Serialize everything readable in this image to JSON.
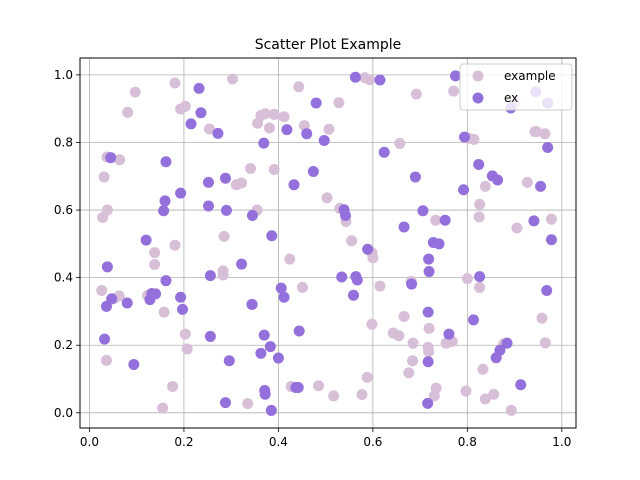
{
  "chart_data": {
    "type": "scatter",
    "title": "Scatter Plot Example",
    "xlabel": "",
    "ylabel": "",
    "xlim": [
      -0.02,
      1.03
    ],
    "ylim": [
      -0.045,
      1.05
    ],
    "xticks": [
      0.0,
      0.2,
      0.4,
      0.6,
      0.8,
      1.0
    ],
    "xtick_labels": [
      "0.0",
      "0.2",
      "0.4",
      "0.6",
      "0.8",
      "1.0"
    ],
    "yticks": [
      0.0,
      0.2,
      0.4,
      0.6,
      0.8,
      1.0
    ],
    "ytick_labels": [
      "0.0",
      "0.2",
      "0.4",
      "0.6",
      "0.8",
      "1.0"
    ],
    "grid": true,
    "legend": "top-right",
    "series": [
      {
        "name": "example",
        "color": "#d8bfd8",
        "points": [
          [
            0.097,
            0.949
          ],
          [
            0.181,
            0.976
          ],
          [
            0.303,
            0.988
          ],
          [
            0.443,
            0.965
          ],
          [
            0.583,
            0.992
          ],
          [
            0.593,
            0.986
          ],
          [
            0.692,
            0.943
          ],
          [
            0.771,
            0.952
          ],
          [
            0.081,
            0.889
          ],
          [
            0.203,
            0.907
          ],
          [
            0.193,
            0.899
          ],
          [
            0.254,
            0.84
          ],
          [
            0.363,
            0.88
          ],
          [
            0.372,
            0.885
          ],
          [
            0.391,
            0.883
          ],
          [
            0.412,
            0.876
          ],
          [
            0.356,
            0.857
          ],
          [
            0.381,
            0.843
          ],
          [
            0.455,
            0.85
          ],
          [
            0.507,
            0.839
          ],
          [
            0.528,
            0.918
          ],
          [
            0.657,
            0.797
          ],
          [
            0.814,
            0.809
          ],
          [
            0.943,
            0.832
          ],
          [
            0.964,
            0.826
          ],
          [
            0.037,
            0.757
          ],
          [
            0.064,
            0.749
          ],
          [
            0.391,
            0.72
          ],
          [
            0.322,
            0.68
          ],
          [
            0.311,
            0.675
          ],
          [
            0.341,
            0.723
          ],
          [
            0.503,
            0.636
          ],
          [
            0.838,
            0.67
          ],
          [
            0.927,
            0.682
          ],
          [
            0.031,
            0.698
          ],
          [
            0.038,
            0.6
          ],
          [
            0.028,
            0.578
          ],
          [
            0.355,
            0.6
          ],
          [
            0.53,
            0.605
          ],
          [
            0.543,
            0.566
          ],
          [
            0.555,
            0.509
          ],
          [
            0.598,
            0.474
          ],
          [
            0.6,
            0.459
          ],
          [
            0.733,
            0.57
          ],
          [
            0.825,
            0.58
          ],
          [
            0.826,
            0.617
          ],
          [
            0.905,
            0.547
          ],
          [
            0.978,
            0.573
          ],
          [
            0.181,
            0.496
          ],
          [
            0.138,
            0.474
          ],
          [
            0.138,
            0.439
          ],
          [
            0.285,
            0.522
          ],
          [
            0.424,
            0.455
          ],
          [
            0.615,
            0.375
          ],
          [
            0.681,
            0.389
          ],
          [
            0.8,
            0.397
          ],
          [
            0.826,
            0.371
          ],
          [
            0.026,
            0.362
          ],
          [
            0.052,
            0.338
          ],
          [
            0.063,
            0.346
          ],
          [
            0.123,
            0.347
          ],
          [
            0.158,
            0.298
          ],
          [
            0.283,
            0.408
          ],
          [
            0.283,
            0.42
          ],
          [
            0.345,
            0.32
          ],
          [
            0.451,
            0.371
          ],
          [
            0.598,
            0.262
          ],
          [
            0.643,
            0.236
          ],
          [
            0.666,
            0.285
          ],
          [
            0.719,
            0.25
          ],
          [
            0.755,
            0.206
          ],
          [
            0.958,
            0.28
          ],
          [
            0.203,
            0.233
          ],
          [
            0.207,
            0.189
          ],
          [
            0.036,
            0.155
          ],
          [
            0.155,
            0.014
          ],
          [
            0.176,
            0.078
          ],
          [
            0.335,
            0.027
          ],
          [
            0.427,
            0.078
          ],
          [
            0.485,
            0.08
          ],
          [
            0.517,
            0.05
          ],
          [
            0.588,
            0.105
          ],
          [
            0.577,
            0.054
          ],
          [
            0.676,
            0.118
          ],
          [
            0.684,
            0.154
          ],
          [
            0.655,
            0.228
          ],
          [
            0.685,
            0.206
          ],
          [
            0.718,
            0.181
          ],
          [
            0.73,
            0.05
          ],
          [
            0.734,
            0.073
          ],
          [
            0.797,
            0.064
          ],
          [
            0.833,
            0.129
          ],
          [
            0.838,
            0.041
          ],
          [
            0.856,
            0.055
          ],
          [
            0.877,
            0.204
          ],
          [
            0.893,
            0.007
          ],
          [
            0.965,
            0.207
          ],
          [
            0.946,
            0.832
          ],
          [
            0.901,
            0.917
          ],
          [
            0.803,
            0.812
          ],
          [
            0.768,
            0.211
          ],
          [
            0.717,
            0.194
          ]
        ]
      },
      {
        "name": "ex",
        "color": "#9370db",
        "points": [
          [
            0.563,
            0.993
          ],
          [
            0.615,
            0.985
          ],
          [
            0.775,
            0.997
          ],
          [
            0.232,
            0.96
          ],
          [
            0.48,
            0.917
          ],
          [
            0.892,
            0.902
          ],
          [
            0.945,
            0.95
          ],
          [
            0.97,
            0.917
          ],
          [
            0.215,
            0.855
          ],
          [
            0.236,
            0.888
          ],
          [
            0.272,
            0.827
          ],
          [
            0.369,
            0.798
          ],
          [
            0.418,
            0.838
          ],
          [
            0.46,
            0.826
          ],
          [
            0.497,
            0.806
          ],
          [
            0.794,
            0.816
          ],
          [
            0.045,
            0.755
          ],
          [
            0.162,
            0.743
          ],
          [
            0.624,
            0.771
          ],
          [
            0.824,
            0.735
          ],
          [
            0.97,
            0.785
          ],
          [
            0.252,
            0.682
          ],
          [
            0.288,
            0.694
          ],
          [
            0.433,
            0.675
          ],
          [
            0.474,
            0.714
          ],
          [
            0.69,
            0.698
          ],
          [
            0.853,
            0.701
          ],
          [
            0.864,
            0.689
          ],
          [
            0.792,
            0.66
          ],
          [
            0.955,
            0.67
          ],
          [
            0.16,
            0.627
          ],
          [
            0.193,
            0.65
          ],
          [
            0.157,
            0.598
          ],
          [
            0.252,
            0.612
          ],
          [
            0.29,
            0.599
          ],
          [
            0.345,
            0.584
          ],
          [
            0.539,
            0.601
          ],
          [
            0.542,
            0.584
          ],
          [
            0.666,
            0.55
          ],
          [
            0.706,
            0.598
          ],
          [
            0.753,
            0.57
          ],
          [
            0.941,
            0.568
          ],
          [
            0.978,
            0.512
          ],
          [
            0.12,
            0.511
          ],
          [
            0.386,
            0.524
          ],
          [
            0.589,
            0.484
          ],
          [
            0.728,
            0.504
          ],
          [
            0.74,
            0.5
          ],
          [
            0.718,
            0.455
          ],
          [
            0.038,
            0.432
          ],
          [
            0.162,
            0.391
          ],
          [
            0.256,
            0.406
          ],
          [
            0.322,
            0.44
          ],
          [
            0.406,
            0.369
          ],
          [
            0.412,
            0.342
          ],
          [
            0.534,
            0.402
          ],
          [
            0.559,
            0.348
          ],
          [
            0.564,
            0.403
          ],
          [
            0.567,
            0.393
          ],
          [
            0.682,
            0.381
          ],
          [
            0.719,
            0.418
          ],
          [
            0.826,
            0.403
          ],
          [
            0.128,
            0.335
          ],
          [
            0.132,
            0.353
          ],
          [
            0.14,
            0.352
          ],
          [
            0.193,
            0.342
          ],
          [
            0.197,
            0.306
          ],
          [
            0.036,
            0.315
          ],
          [
            0.047,
            0.337
          ],
          [
            0.08,
            0.325
          ],
          [
            0.344,
            0.321
          ],
          [
            0.717,
            0.298
          ],
          [
            0.813,
            0.275
          ],
          [
            0.968,
            0.362
          ],
          [
            0.032,
            0.218
          ],
          [
            0.256,
            0.226
          ],
          [
            0.363,
            0.176
          ],
          [
            0.37,
            0.23
          ],
          [
            0.383,
            0.196
          ],
          [
            0.4,
            0.162
          ],
          [
            0.444,
            0.242
          ],
          [
            0.296,
            0.154
          ],
          [
            0.094,
            0.143
          ],
          [
            0.288,
            0.03
          ],
          [
            0.371,
            0.066
          ],
          [
            0.372,
            0.055
          ],
          [
            0.385,
            0.007
          ],
          [
            0.437,
            0.075
          ],
          [
            0.442,
            0.075
          ],
          [
            0.717,
            0.151
          ],
          [
            0.716,
            0.028
          ],
          [
            0.761,
            0.233
          ],
          [
            0.861,
            0.163
          ],
          [
            0.884,
            0.206
          ],
          [
            0.869,
            0.185
          ],
          [
            0.913,
            0.083
          ]
        ]
      }
    ]
  }
}
